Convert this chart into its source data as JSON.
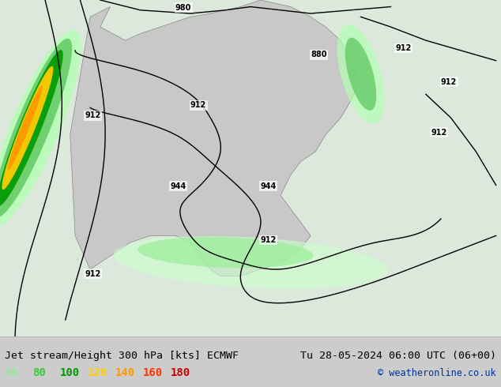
{
  "title_left": "Jet stream/Height 300 hPa [kts] ECMWF",
  "title_right": "Tu 28-05-2024 06:00 UTC (06+00)",
  "credit": "© weatheronline.co.uk",
  "legend_values": [
    "60",
    "80",
    "100",
    "120",
    "140",
    "160",
    "180"
  ],
  "legend_colors": [
    "#99e699",
    "#33cc33",
    "#009900",
    "#ffcc00",
    "#ff9900",
    "#ff3300",
    "#cc0000"
  ],
  "bg_color": "#e8e8e8",
  "map_bg": "#d4d4d4",
  "land_color": "#d4d4d4",
  "sea_color": "#e8f4e8",
  "figsize": [
    6.34,
    4.9
  ],
  "dpi": 100,
  "bottom_bar_color": "#f0f0f0"
}
